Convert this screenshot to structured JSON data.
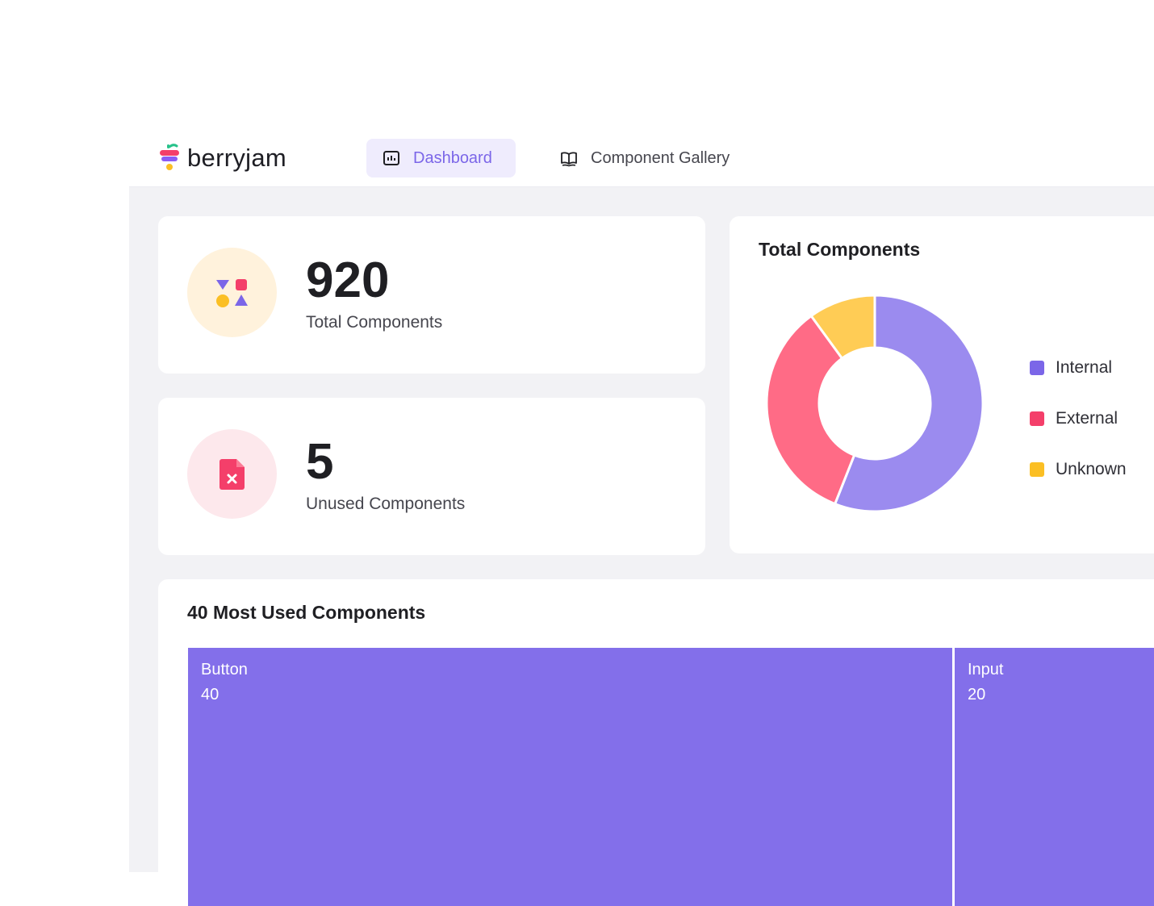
{
  "app": {
    "brand": "berryjam"
  },
  "nav": {
    "tabs": [
      {
        "label": "Dashboard",
        "icon": "chart-icon",
        "active": true
      },
      {
        "label": "Component Gallery",
        "icon": "book-icon",
        "active": false
      }
    ]
  },
  "stats": [
    {
      "value": "920",
      "label": "Total Components",
      "icon": "shapes-icon",
      "icon_bg": "#fff2dc"
    },
    {
      "value": "5",
      "label": "Unused Components",
      "icon": "file-x-icon",
      "icon_bg": "#fde8ec"
    }
  ],
  "donut": {
    "title": "Total Components",
    "legend": [
      {
        "label": "Internal",
        "color": "#7b66e8"
      },
      {
        "label": "External",
        "color": "#f43f6a"
      },
      {
        "label": "Unknown",
        "color": "#fbbf24"
      }
    ]
  },
  "chart_data": {
    "type": "pie",
    "title": "Total Components",
    "donut": true,
    "categories": [
      "Internal",
      "External",
      "Unknown"
    ],
    "values": [
      56,
      34,
      10
    ],
    "colors": [
      "#9b8bef",
      "#ff6b86",
      "#ffcc55"
    ],
    "legend_position": "right"
  },
  "treemap": {
    "title": "40 Most Used Components",
    "items": [
      {
        "name": "Button",
        "value": 40
      },
      {
        "name": "Input",
        "value": 20
      }
    ]
  }
}
